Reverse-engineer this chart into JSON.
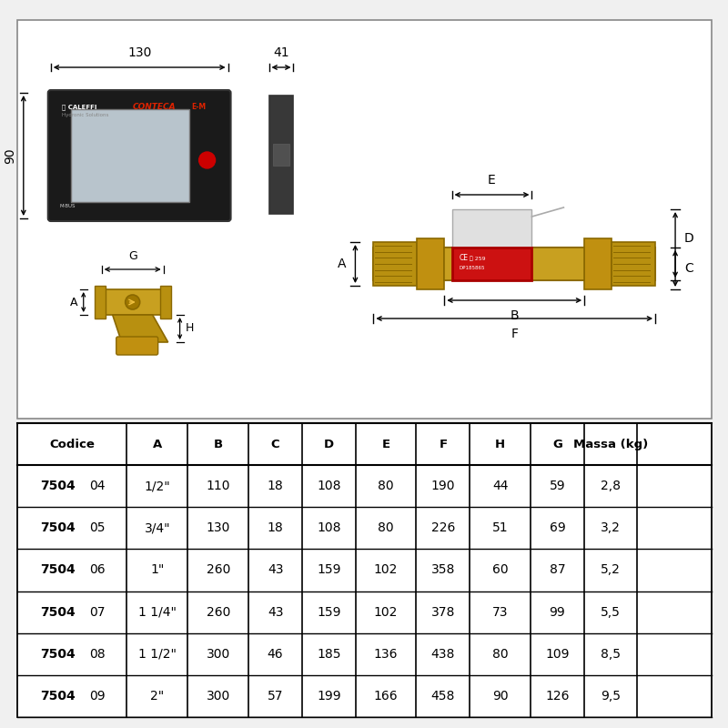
{
  "bg_color": "#f0f0f0",
  "diagram_bg": "#ffffff",
  "table_bg": "#ffffff",
  "black_box_color": "#1a1a1a",
  "screen_color": "#b8c4cc",
  "gold_color": "#c8a020",
  "gold_dark": "#8a6800",
  "red_color": "#cc1111",
  "gray_sensor": "#d0d0d0",
  "table_headers": [
    "Codice",
    "A",
    "B",
    "C",
    "D",
    "E",
    "F",
    "H",
    "G",
    "Massa (kg)"
  ],
  "table_rows": [
    [
      "750404",
      "1/2\"",
      "110",
      "18",
      "108",
      "80",
      "190",
      "44",
      "59",
      "2,8"
    ],
    [
      "750405",
      "3/4\"",
      "130",
      "18",
      "108",
      "80",
      "226",
      "51",
      "69",
      "3,2"
    ],
    [
      "750406",
      "1\"",
      "260",
      "43",
      "159",
      "102",
      "358",
      "60",
      "87",
      "5,2"
    ],
    [
      "750407",
      "1 1/4\"",
      "260",
      "43",
      "159",
      "102",
      "378",
      "73",
      "99",
      "5,5"
    ],
    [
      "750408",
      "1 1/2\"",
      "300",
      "46",
      "185",
      "136",
      "438",
      "80",
      "109",
      "8,5"
    ],
    [
      "750409",
      "2\"",
      "300",
      "57",
      "199",
      "166",
      "458",
      "90",
      "126",
      "9,5"
    ]
  ]
}
